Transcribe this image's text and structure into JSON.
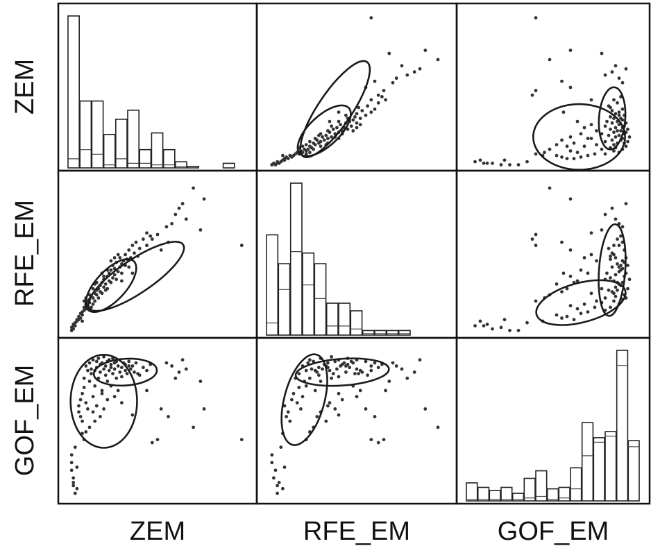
{
  "variables": [
    "ZEM",
    "RFE_EM",
    "GOF_EM"
  ],
  "chart_data": {
    "type": "scatter",
    "kind": "scatterplot-matrix",
    "diagonal": "histogram",
    "off_diagonal": "scatter with two ellipses",
    "variables": [
      "ZEM",
      "RFE_EM",
      "GOF_EM"
    ],
    "range": [
      0,
      1
    ],
    "histograms": {
      "ZEM": {
        "bins": 15,
        "total": [
          1.0,
          0.44,
          0.44,
          0.22,
          0.32,
          0.38,
          0.12,
          0.23,
          0.12,
          0.04,
          0.01,
          0.0,
          0.0,
          0.03,
          0.0
        ],
        "sub": [
          0.06,
          0.12,
          0.09,
          0.02,
          0.06,
          0.03,
          0.03,
          0.02,
          0.02,
          0.01,
          0.0,
          0.0,
          0.0,
          0.0,
          0.0
        ]
      },
      "RFE_EM": {
        "bins": 15,
        "total": [
          0.66,
          0.47,
          1.0,
          0.54,
          0.47,
          0.21,
          0.21,
          0.16,
          0.03,
          0.03,
          0.03,
          0.03,
          0.0,
          0.0,
          0.0
        ],
        "sub": [
          0.08,
          0.3,
          0.55,
          0.33,
          0.24,
          0.06,
          0.06,
          0.04,
          0.01,
          0.01,
          0.01,
          0.01,
          0.0,
          0.0,
          0.0
        ]
      },
      "GOF_EM": {
        "bins": 15,
        "total": [
          0.12,
          0.09,
          0.07,
          0.09,
          0.05,
          0.15,
          0.2,
          0.08,
          0.09,
          0.22,
          0.52,
          0.42,
          0.46,
          1.0,
          0.4
        ],
        "sub": [
          0.01,
          0.01,
          0.01,
          0.01,
          0.01,
          0.02,
          0.03,
          0.01,
          0.02,
          0.08,
          0.3,
          0.39,
          0.43,
          0.9,
          0.36
        ]
      }
    },
    "ellipses": {
      "RFE_EM_vs_ZEM": [
        {
          "cx": 0.38,
          "cy": 0.38,
          "rx": 0.34,
          "ry": 0.1,
          "angle": 34
        },
        {
          "cx": 0.24,
          "cy": 0.32,
          "rx": 0.2,
          "ry": 0.09,
          "angle": 47
        }
      ],
      "GOF_EM_vs_ZEM": [
        {
          "cx": 0.2,
          "cy": 0.65,
          "rx": 0.2,
          "ry": 0.28,
          "angle": 0
        },
        {
          "cx": 0.32,
          "cy": 0.84,
          "rx": 0.19,
          "ry": 0.08,
          "angle": 4
        }
      ],
      "GOF_EM_vs_RFE_EM": [
        {
          "cx": 0.42,
          "cy": 0.84,
          "rx": 0.28,
          "ry": 0.08,
          "angle": 4
        },
        {
          "cx": 0.21,
          "cy": 0.66,
          "rx": 0.28,
          "ry": 0.12,
          "angle": 75
        }
      ]
    },
    "points": [
      [
        0.02,
        0.03,
        0.25
      ],
      [
        0.02,
        0.05,
        0.2
      ],
      [
        0.03,
        0.04,
        0.15
      ],
      [
        0.03,
        0.06,
        0.1
      ],
      [
        0.02,
        0.03,
        0.3
      ],
      [
        0.03,
        0.07,
        0.12
      ],
      [
        0.04,
        0.08,
        0.35
      ],
      [
        0.04,
        0.06,
        0.05
      ],
      [
        0.05,
        0.1,
        0.22
      ],
      [
        0.05,
        0.09,
        0.08
      ],
      [
        0.06,
        0.1,
        0.62
      ],
      [
        0.06,
        0.12,
        0.58
      ],
      [
        0.07,
        0.14,
        0.66
      ],
      [
        0.07,
        0.11,
        0.55
      ],
      [
        0.08,
        0.15,
        0.7
      ],
      [
        0.08,
        0.13,
        0.52
      ],
      [
        0.09,
        0.16,
        0.8
      ],
      [
        0.09,
        0.18,
        0.74
      ],
      [
        0.1,
        0.2,
        0.88
      ],
      [
        0.1,
        0.17,
        0.64
      ],
      [
        0.11,
        0.22,
        0.85
      ],
      [
        0.11,
        0.19,
        0.6
      ],
      [
        0.12,
        0.23,
        0.9
      ],
      [
        0.12,
        0.21,
        0.78
      ],
      [
        0.13,
        0.18,
        0.83
      ],
      [
        0.13,
        0.25,
        0.86
      ],
      [
        0.14,
        0.24,
        0.92
      ],
      [
        0.14,
        0.2,
        0.68
      ],
      [
        0.15,
        0.27,
        0.85
      ],
      [
        0.15,
        0.22,
        0.75
      ],
      [
        0.16,
        0.26,
        0.91
      ],
      [
        0.16,
        0.29,
        0.87
      ],
      [
        0.17,
        0.24,
        0.8
      ],
      [
        0.17,
        0.3,
        0.93
      ],
      [
        0.18,
        0.28,
        0.84
      ],
      [
        0.18,
        0.32,
        0.89
      ],
      [
        0.19,
        0.27,
        0.72
      ],
      [
        0.19,
        0.34,
        0.9
      ],
      [
        0.2,
        0.31,
        0.86
      ],
      [
        0.2,
        0.36,
        0.94
      ],
      [
        0.21,
        0.29,
        0.82
      ],
      [
        0.21,
        0.33,
        0.88
      ],
      [
        0.22,
        0.38,
        0.91
      ],
      [
        0.22,
        0.3,
        0.78
      ],
      [
        0.23,
        0.35,
        0.85
      ],
      [
        0.23,
        0.4,
        0.92
      ],
      [
        0.24,
        0.34,
        0.87
      ],
      [
        0.24,
        0.42,
        0.89
      ],
      [
        0.25,
        0.37,
        0.83
      ],
      [
        0.25,
        0.45,
        0.93
      ],
      [
        0.26,
        0.39,
        0.86
      ],
      [
        0.26,
        0.43,
        0.9
      ],
      [
        0.27,
        0.36,
        0.8
      ],
      [
        0.27,
        0.47,
        0.91
      ],
      [
        0.28,
        0.41,
        0.88
      ],
      [
        0.29,
        0.44,
        0.84
      ],
      [
        0.29,
        0.5,
        0.92
      ],
      [
        0.3,
        0.46,
        0.87
      ],
      [
        0.3,
        0.4,
        0.81
      ],
      [
        0.31,
        0.48,
        0.9
      ],
      [
        0.32,
        0.52,
        0.85
      ],
      [
        0.32,
        0.45,
        0.89
      ],
      [
        0.33,
        0.49,
        0.83
      ],
      [
        0.34,
        0.55,
        0.91
      ],
      [
        0.35,
        0.5,
        0.86
      ],
      [
        0.36,
        0.58,
        0.88
      ],
      [
        0.37,
        0.53,
        0.84
      ],
      [
        0.38,
        0.6,
        0.9
      ],
      [
        0.4,
        0.56,
        0.82
      ],
      [
        0.42,
        0.62,
        0.87
      ],
      [
        0.44,
        0.58,
        0.85
      ],
      [
        0.46,
        0.64,
        0.89
      ],
      [
        0.14,
        0.3,
        0.58
      ],
      [
        0.16,
        0.34,
        0.62
      ],
      [
        0.18,
        0.28,
        0.55
      ],
      [
        0.2,
        0.38,
        0.6
      ],
      [
        0.22,
        0.42,
        0.66
      ],
      [
        0.12,
        0.26,
        0.48
      ],
      [
        0.15,
        0.33,
        0.52
      ],
      [
        0.19,
        0.4,
        0.7
      ],
      [
        0.24,
        0.48,
        0.75
      ],
      [
        0.1,
        0.24,
        0.45
      ],
      [
        0.26,
        0.5,
        0.68
      ],
      [
        0.28,
        0.52,
        0.72
      ],
      [
        0.09,
        0.22,
        0.4
      ],
      [
        0.55,
        0.7,
        0.9
      ],
      [
        0.58,
        0.72,
        0.88
      ],
      [
        0.6,
        0.78,
        0.8
      ],
      [
        0.62,
        0.82,
        0.84
      ],
      [
        0.64,
        0.85,
        0.92
      ],
      [
        0.66,
        0.75,
        0.86
      ],
      [
        0.7,
        0.95,
        0.48
      ],
      [
        0.74,
        0.68,
        0.78
      ],
      [
        0.5,
        0.65,
        0.4
      ],
      [
        0.47,
        0.62,
        0.38
      ],
      [
        0.52,
        0.55,
        0.6
      ],
      [
        0.56,
        0.6,
        0.55
      ],
      [
        0.97,
        0.58,
        0.4
      ],
      [
        0.76,
        0.88,
        0.6
      ],
      [
        0.44,
        0.66,
        0.72
      ],
      [
        0.36,
        0.4,
        0.56
      ],
      [
        0.3,
        0.35,
        0.64
      ],
      [
        0.08,
        0.09,
        0.44
      ],
      [
        0.34,
        0.44,
        0.88
      ],
      [
        0.39,
        0.51,
        0.83
      ]
    ]
  }
}
